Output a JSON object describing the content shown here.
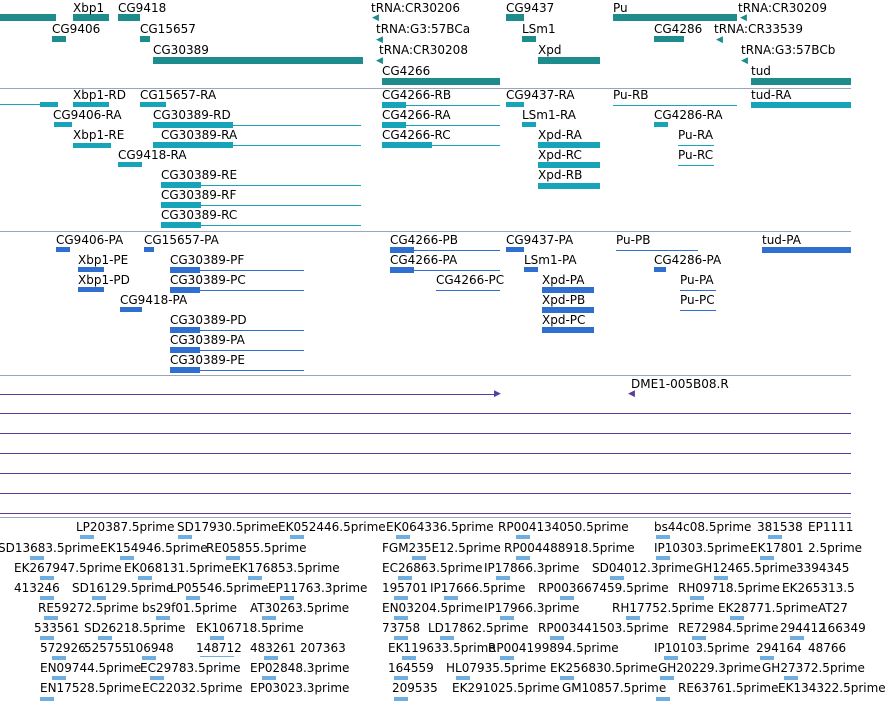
{
  "colors": {
    "gene": "#1e8c8c",
    "transcript": "#17a4b8",
    "protein": "#2f6fd0",
    "clone_line": "#5a3d9a",
    "est": "#6eaee0",
    "separator": "#9aa6c0"
  },
  "tracks": {
    "genes": {
      "labels": [
        "Xbp1",
        "CG9418",
        "CG9406",
        "CG15657",
        "CG30389",
        "tRNA:CR30206",
        "tRNA:G3:57BCa",
        "tRNA:CR30208",
        "CG4266",
        "CG9437",
        "LSm1",
        "Xpd",
        "Pu",
        "CG4286",
        "tRNA:CR30209",
        "tRNA:CR33539",
        "tRNA:G3:57BCb",
        "tud"
      ]
    },
    "transcripts": {
      "labels": [
        "Xbp1-RD",
        "CG15657-RA",
        "CG9406-RA",
        "CG30389-RD",
        "Xbp1-RE",
        "CG30389-RA",
        "CG9418-RA",
        "CG30389-RE",
        "CG30389-RF",
        "CG30389-RC",
        "CG4266-RB",
        "CG4266-RA",
        "CG4266-RC",
        "CG9437-RA",
        "LSm1-RA",
        "Xpd-RA",
        "Xpd-RC",
        "Xpd-RB",
        "Pu-RB",
        "CG4286-RA",
        "Pu-RA",
        "Pu-RC",
        "tud-RA"
      ]
    },
    "proteins": {
      "labels": [
        "CG9406-PA",
        "CG15657-PA",
        "Xbp1-PE",
        "CG30389-PF",
        "Xbp1-PD",
        "CG30389-PC",
        "CG9418-PA",
        "CG30389-PD",
        "CG30389-PA",
        "CG30389-PE",
        "CG4266-PB",
        "CG4266-PA",
        "CG4266-PC",
        "CG9437-PA",
        "LSm1-PA",
        "Xpd-PA",
        "Xpd-PB",
        "Xpd-PC",
        "Pu-PB",
        "CG4286-PA",
        "Pu-PA",
        "Pu-PC",
        "tud-PA"
      ]
    },
    "clones": {
      "labels": [
        "DME1-005B08.R"
      ]
    },
    "ests": {
      "labels": [
        "LP20387.5prime",
        "SD17930.5prime",
        "EK052446.5prime",
        "EK064336.5prime",
        "RP004134050.5prime",
        "bs44c08.5prime",
        "381538",
        "EP1111",
        "SD13683.5prime",
        "EK154946.5prime",
        "RE05855.5prime",
        "FGM235E12.5prime",
        "RP004488918.5prime",
        "IP10303.5prime",
        "EK17801",
        "2.5prime",
        "EK267947.5prime",
        "EK068131.5prime",
        "EK176853.5prime",
        "EC26863.5prime",
        "IP17866.3prime",
        "SD04012.3prime",
        "GH12465.5prime",
        "3394345",
        "413246",
        "SD16129.5prime",
        "LP05546.5prime",
        "EP11763.3prime",
        "195701",
        "IP17666.5prime",
        "RP003667459.5prime",
        "RH09718.5prime",
        "EK265313.5",
        "RE59272.5prime",
        "bs29f01.5prime",
        "AT30263.5prime",
        "EN03204.5prime",
        "IP17966.3prime",
        "RH17752.5prime",
        "EK28771.5prime",
        "AT27",
        "533561",
        "SD26218.5prime",
        "EK106718.5prime",
        "73758",
        "LD17862.5prime",
        "RP003441503.5prime",
        "RE72984.5prime",
        "294412",
        "166349",
        "572926",
        "525755",
        "106948",
        "148712",
        "483261",
        "207363",
        "EK119633.5prime",
        "RP004199894.5prime",
        "IP10103.5prime",
        "294164",
        "48766",
        "EN09744.5prime",
        "EC29783.5prime",
        "EP02848.3prime",
        "164559",
        "HL07935.5prime",
        "EK256830.5prime",
        "GH20229.3prime",
        "GH27372.5prime",
        "EN17528.5prime",
        "EC22032.5prime",
        "EP03023.3prime",
        "209535",
        "EK291025.5prime",
        "GM10857.5prime",
        "RE63761.5prime",
        "EK134322.5prime"
      ]
    }
  }
}
